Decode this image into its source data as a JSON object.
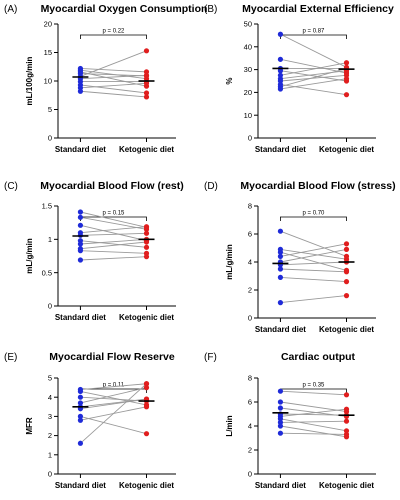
{
  "figure": {
    "colors": {
      "standard": "#1f2bd8",
      "ketogenic": "#e01e1e",
      "line": "#9a9a9a",
      "axis": "#000000"
    }
  },
  "chart_data": [
    {
      "type": "scatter",
      "panel_label": "(A)",
      "title": "Myocardial Oxygen Consumption",
      "ylabel": "mL/100g/min",
      "categories": [
        "Standard diet",
        "Ketogenic diet"
      ],
      "ylim": [
        0,
        20
      ],
      "yticks": [
        0,
        5,
        10,
        15,
        20
      ],
      "p_value": "p = 0.22",
      "series": [
        {
          "values": [
            12.2,
            11.6
          ]
        },
        {
          "values": [
            11.9,
            10.4
          ]
        },
        {
          "values": [
            11.6,
            9.1
          ]
        },
        {
          "values": [
            11.3,
            10.9
          ]
        },
        {
          "values": [
            10.8,
            15.3
          ]
        },
        {
          "values": [
            10.4,
            11.0
          ]
        },
        {
          "values": [
            9.9,
            9.9
          ]
        },
        {
          "values": [
            9.3,
            7.9
          ]
        },
        {
          "values": [
            8.8,
            9.6
          ]
        },
        {
          "values": [
            8.2,
            7.2
          ]
        }
      ],
      "means": [
        10.7,
        10.0
      ]
    },
    {
      "type": "scatter",
      "panel_label": "(B)",
      "title": "Myocardial External Efficiency",
      "ylabel": "%",
      "categories": [
        "Standard diet",
        "Ketogenic diet"
      ],
      "ylim": [
        0,
        50
      ],
      "yticks": [
        0,
        10,
        20,
        30,
        40,
        50
      ],
      "p_value": "p = 0.87",
      "series": [
        {
          "values": [
            45.5,
            31.0
          ]
        },
        {
          "values": [
            34.5,
            28.5
          ]
        },
        {
          "values": [
            30.5,
            30.5
          ]
        },
        {
          "values": [
            29.5,
            25.0
          ]
        },
        {
          "values": [
            27.5,
            33.0
          ]
        },
        {
          "values": [
            26.0,
            29.5
          ]
        },
        {
          "values": [
            25.0,
            27.5
          ]
        },
        {
          "values": [
            23.5,
            19.0
          ]
        },
        {
          "values": [
            22.5,
            30.5
          ]
        },
        {
          "values": [
            21.5,
            26.0
          ]
        }
      ],
      "means": [
        30.5,
        30.2
      ]
    },
    {
      "type": "scatter",
      "panel_label": "(C)",
      "title": "Myocardial Blood Flow (rest)",
      "ylabel": "mL/g/min",
      "categories": [
        "Standard diet",
        "Ketogenic diet"
      ],
      "ylim": [
        0,
        1.5
      ],
      "yticks": [
        0.0,
        0.5,
        1.0,
        1.5
      ],
      "p_value": "p = 0.15",
      "series": [
        {
          "values": [
            1.41,
            1.18
          ]
        },
        {
          "values": [
            1.33,
            1.15
          ]
        },
        {
          "values": [
            1.21,
            0.98
          ]
        },
        {
          "values": [
            1.1,
            1.19
          ]
        },
        {
          "values": [
            1.06,
            1.09
          ]
        },
        {
          "values": [
            0.98,
            0.88
          ]
        },
        {
          "values": [
            0.93,
            1.0
          ]
        },
        {
          "values": [
            0.86,
            0.96
          ]
        },
        {
          "values": [
            0.83,
            0.79
          ]
        },
        {
          "values": [
            0.69,
            0.74
          ]
        }
      ],
      "means": [
        1.05,
        1.0
      ]
    },
    {
      "type": "scatter",
      "panel_label": "(D)",
      "title": "Myocardial Blood Flow (stress)",
      "ylabel": "mL/g/min",
      "categories": [
        "Standard diet",
        "Ketogenic diet"
      ],
      "ylim": [
        0,
        8
      ],
      "yticks": [
        0,
        2,
        4,
        6,
        8
      ],
      "p_value": "p = 0.70",
      "series": [
        {
          "values": [
            6.2,
            4.4
          ]
        },
        {
          "values": [
            4.9,
            4.2
          ]
        },
        {
          "values": [
            4.7,
            3.4
          ]
        },
        {
          "values": [
            4.4,
            5.3
          ]
        },
        {
          "values": [
            4.0,
            4.9
          ]
        },
        {
          "values": [
            3.8,
            4.0
          ]
        },
        {
          "values": [
            3.5,
            3.3
          ]
        },
        {
          "values": [
            2.9,
            2.6
          ]
        },
        {
          "values": [
            1.1,
            1.6
          ]
        }
      ],
      "means": [
        3.9,
        4.0
      ]
    },
    {
      "type": "scatter",
      "panel_label": "(E)",
      "title": "Myocardial Flow Reserve",
      "ylabel": "MFR",
      "categories": [
        "Standard diet",
        "Ketogenic diet"
      ],
      "ylim": [
        0,
        5
      ],
      "yticks": [
        0,
        1,
        2,
        3,
        4,
        5
      ],
      "p_value": "p = 0.11",
      "series": [
        {
          "values": [
            4.4,
            4.7
          ]
        },
        {
          "values": [
            4.3,
            3.6
          ]
        },
        {
          "values": [
            4.0,
            3.8
          ]
        },
        {
          "values": [
            3.7,
            4.5
          ]
        },
        {
          "values": [
            3.5,
            3.9
          ]
        },
        {
          "values": [
            3.4,
            3.9
          ]
        },
        {
          "values": [
            3.0,
            2.1
          ]
        },
        {
          "values": [
            2.8,
            3.5
          ]
        },
        {
          "values": [
            1.6,
            4.7
          ]
        }
      ],
      "means": [
        3.5,
        3.8
      ]
    },
    {
      "type": "scatter",
      "panel_label": "(F)",
      "title": "Cardiac output",
      "ylabel": "L/min",
      "categories": [
        "Standard diet",
        "Ketogenic diet"
      ],
      "ylim": [
        0,
        8
      ],
      "yticks": [
        0,
        2,
        4,
        6,
        8
      ],
      "p_value": "p = 0.35",
      "series": [
        {
          "values": [
            6.9,
            6.6
          ]
        },
        {
          "values": [
            6.0,
            5.2
          ]
        },
        {
          "values": [
            5.5,
            4.8
          ]
        },
        {
          "values": [
            5.0,
            4.9
          ]
        },
        {
          "values": [
            4.8,
            5.4
          ]
        },
        {
          "values": [
            4.6,
            3.6
          ]
        },
        {
          "values": [
            4.3,
            4.4
          ]
        },
        {
          "values": [
            4.0,
            3.1
          ]
        },
        {
          "values": [
            3.4,
            3.3
          ]
        }
      ],
      "means": [
        5.1,
        4.9
      ]
    }
  ]
}
